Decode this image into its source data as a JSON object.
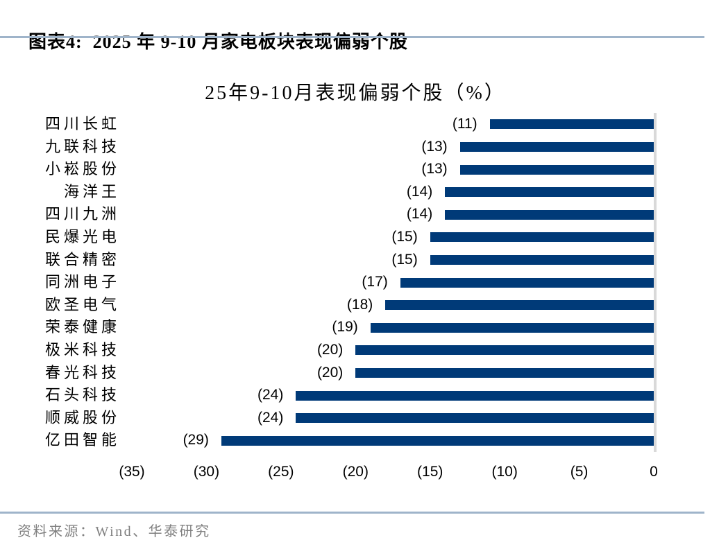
{
  "header": {
    "caption": "图表4:  2025 年 9-10 月家电板块表现偏弱个股"
  },
  "chart_data": {
    "type": "bar",
    "orientation": "horizontal",
    "title": "25年9-10月表现偏弱个股（%）",
    "categories": [
      "四川长虹",
      "九联科技",
      "小崧股份",
      "海洋王",
      "四川九洲",
      "民爆光电",
      "联合精密",
      "同洲电子",
      "欧圣电气",
      "荣泰健康",
      "极米科技",
      "春光科技",
      "石头科技",
      "顺威股份",
      "亿田智能"
    ],
    "values": [
      -11,
      -13,
      -13,
      -14,
      -14,
      -15,
      -15,
      -17,
      -18,
      -19,
      -20,
      -20,
      -24,
      -24,
      -29
    ],
    "value_labels": [
      "(11)",
      "(13)",
      "(13)",
      "(14)",
      "(14)",
      "(15)",
      "(15)",
      "(17)",
      "(18)",
      "(19)",
      "(20)",
      "(20)",
      "(24)",
      "(24)",
      "(29)"
    ],
    "tick_values": [
      -35,
      -30,
      -25,
      -20,
      -15,
      -10,
      -5,
      0
    ],
    "tick_labels": [
      "(35)",
      "(30)",
      "(25)",
      "(20)",
      "(15)",
      "(10)",
      "(5)",
      "0"
    ],
    "xlim": [
      -35,
      0
    ],
    "xlabel": "",
    "ylabel": "",
    "grid": false,
    "legend": null,
    "bar_color": "#003A78",
    "axis_line_color": "#D9D9D9"
  },
  "footer": {
    "source_label": "资料来源：Wind、华泰研究"
  },
  "colors": {
    "divider": "#9FB4CA",
    "footer_text": "#808080",
    "title_text": "#000000"
  }
}
